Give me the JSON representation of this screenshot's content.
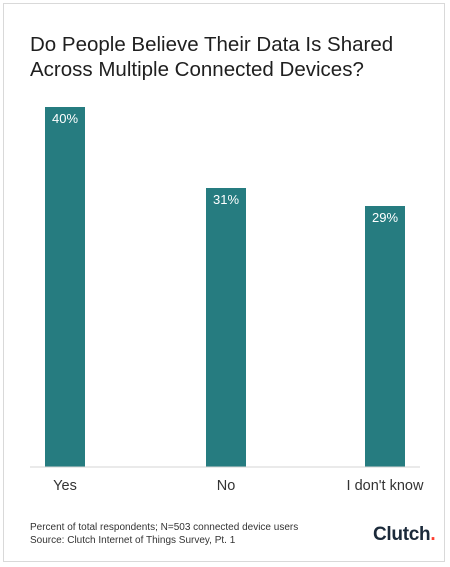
{
  "chart_data": {
    "type": "bar",
    "title": "Do People Believe Their Data Is Shared Across Multiple Connected Devices?",
    "categories": [
      "Yes",
      "No",
      "I don't know"
    ],
    "values": [
      40,
      31,
      29
    ],
    "value_labels": [
      "40%",
      "31%",
      "29%"
    ],
    "ylim": [
      0,
      40
    ],
    "grid": false,
    "bar_color": "#267c80"
  },
  "footer": {
    "note": "Percent of total respondents; N=503 connected device users",
    "source": "Source: Clutch Internet of Things Survey, Pt. 1"
  },
  "logo": {
    "text": "Clutch",
    "accent_color": "#ff3d2e"
  }
}
